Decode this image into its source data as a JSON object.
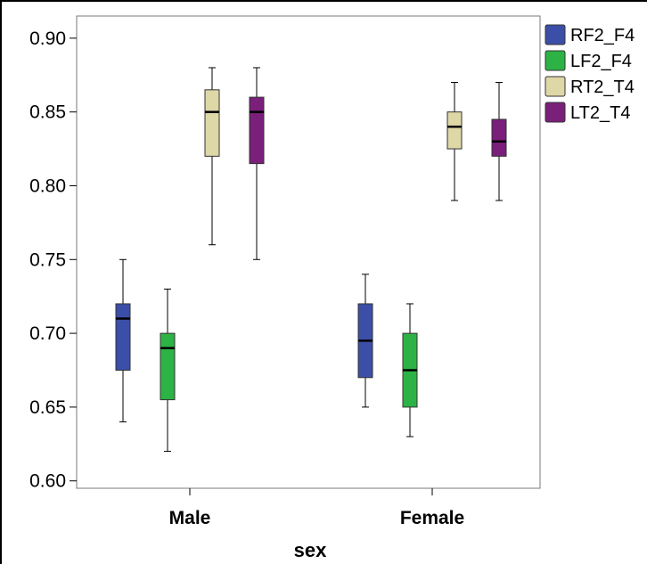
{
  "chart_data": {
    "type": "boxplot",
    "xlabel": "sex",
    "ylabel": "",
    "ylim": [
      0.595,
      0.915
    ],
    "yticks": [
      "0.60",
      "0.65",
      "0.70",
      "0.75",
      "0.80",
      "0.85",
      "0.90"
    ],
    "categories": [
      "Male",
      "Female"
    ],
    "grid": false,
    "legend_position": "right",
    "series": [
      {
        "name": "RF2_F4",
        "color": "#3b4fa8",
        "boxes": [
          {
            "category": "Male",
            "min": 0.64,
            "q1": 0.675,
            "median": 0.71,
            "q3": 0.72,
            "max": 0.75
          },
          {
            "category": "Female",
            "min": 0.65,
            "q1": 0.67,
            "median": 0.695,
            "q3": 0.72,
            "max": 0.74
          }
        ]
      },
      {
        "name": "LF2_F4",
        "color": "#2db345",
        "boxes": [
          {
            "category": "Male",
            "min": 0.62,
            "q1": 0.655,
            "median": 0.69,
            "q3": 0.7,
            "max": 0.73
          },
          {
            "category": "Female",
            "min": 0.63,
            "q1": 0.65,
            "median": 0.675,
            "q3": 0.7,
            "max": 0.72
          }
        ]
      },
      {
        "name": "RT2_T4",
        "color": "#ded7a6",
        "boxes": [
          {
            "category": "Male",
            "min": 0.76,
            "q1": 0.82,
            "median": 0.85,
            "q3": 0.865,
            "max": 0.88
          },
          {
            "category": "Female",
            "min": 0.79,
            "q1": 0.825,
            "median": 0.84,
            "q3": 0.85,
            "max": 0.87
          }
        ]
      },
      {
        "name": "LT2_T4",
        "color": "#7a1f7a",
        "boxes": [
          {
            "category": "Male",
            "min": 0.75,
            "q1": 0.815,
            "median": 0.85,
            "q3": 0.86,
            "max": 0.88
          },
          {
            "category": "Female",
            "min": 0.79,
            "q1": 0.82,
            "median": 0.83,
            "q3": 0.845,
            "max": 0.87
          }
        ]
      }
    ]
  }
}
